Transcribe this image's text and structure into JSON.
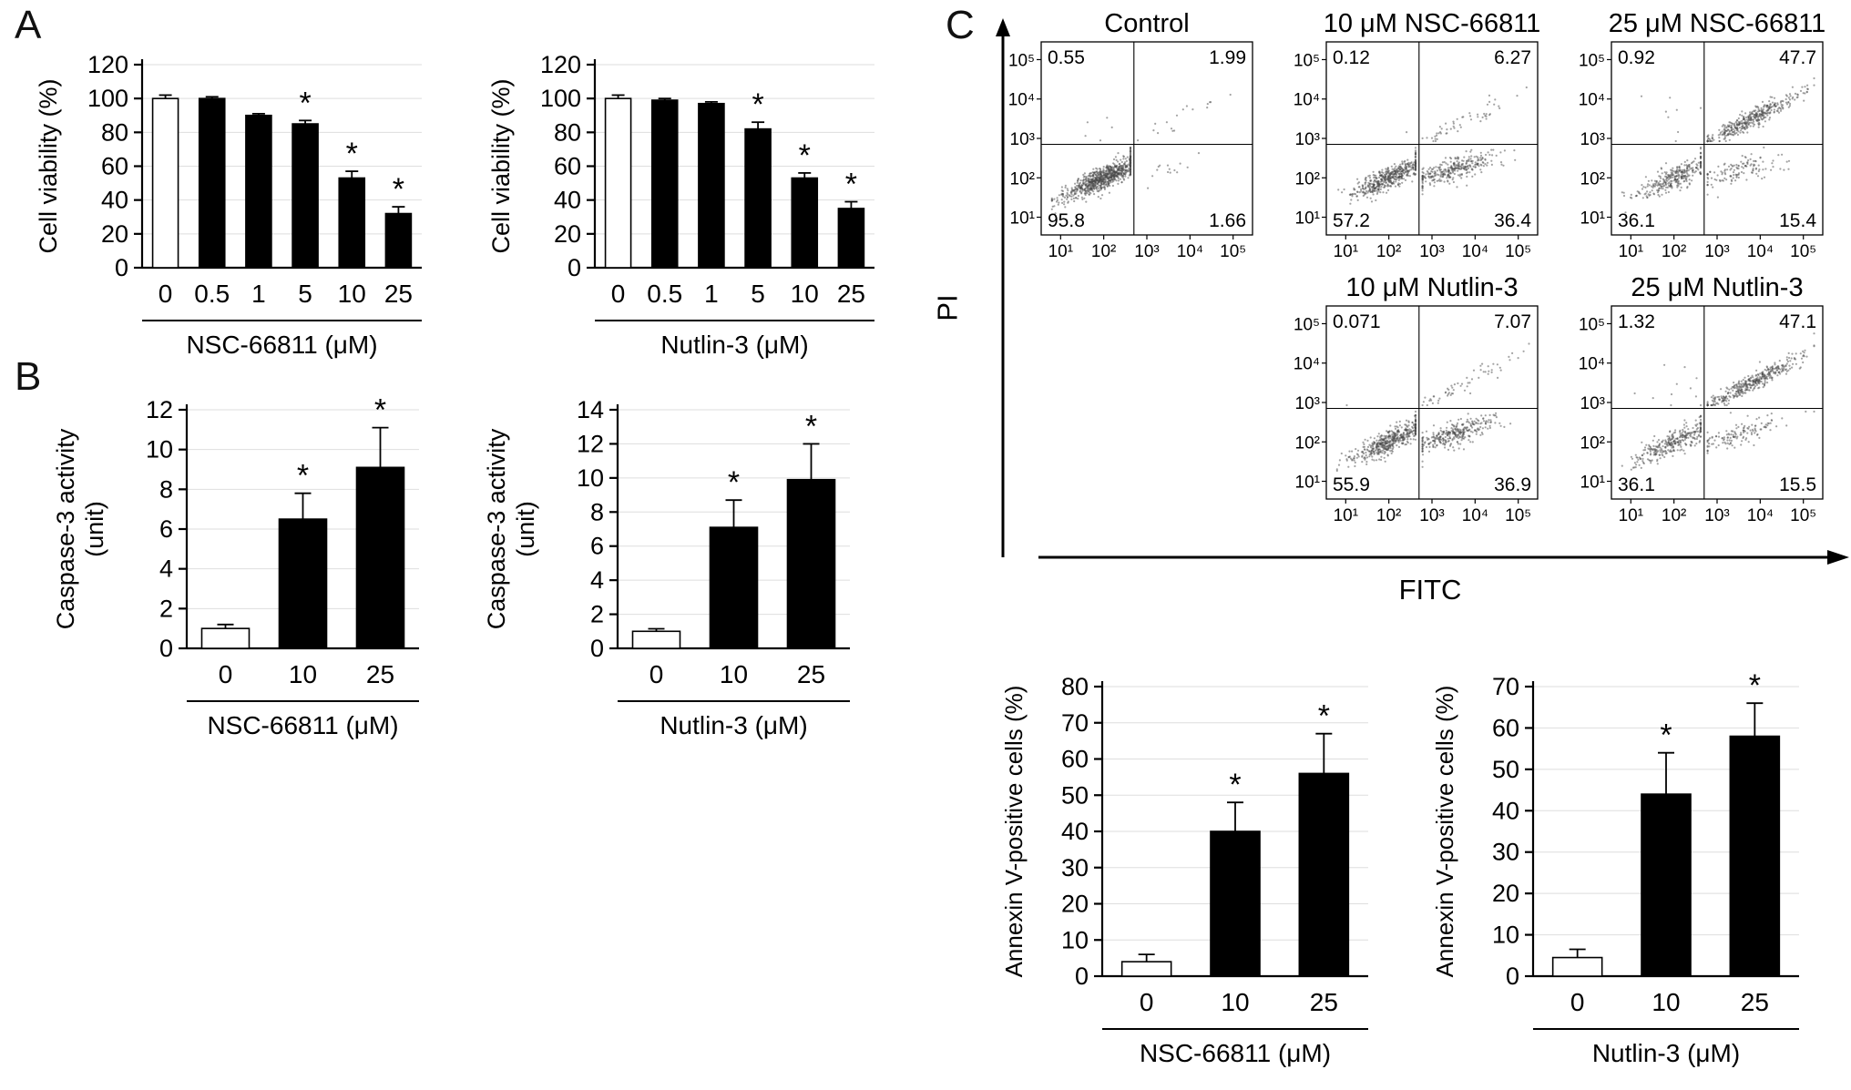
{
  "panel_labels": {
    "A": "A",
    "B": "B",
    "C": "C"
  },
  "flow_axes": {
    "y_label": "PI",
    "x_label": "FITC"
  },
  "chart_data": [
    {
      "id": "viability_nsc",
      "type": "bar",
      "panel": "A",
      "ylabel": "Cell viability (%)",
      "ylabel_lines": [
        "Cell viability (%)"
      ],
      "xlabel": "NSC-66811 (μM)",
      "categories": [
        "0",
        "0.5",
        "1",
        "5",
        "10",
        "25"
      ],
      "values": [
        100,
        100,
        90,
        85,
        53,
        32
      ],
      "errors": [
        2,
        1,
        1,
        2,
        4,
        4
      ],
      "significance": [
        "",
        "",
        "",
        "*",
        "*",
        "*"
      ],
      "bar_fills": [
        "#ffffff",
        "#000000",
        "#000000",
        "#000000",
        "#000000",
        "#000000"
      ],
      "ylim": [
        0,
        120
      ],
      "ytick_step": 20,
      "grid": true
    },
    {
      "id": "viability_nutlin",
      "type": "bar",
      "panel": "A",
      "ylabel": "Cell viability (%)",
      "ylabel_lines": [
        "Cell viability (%)"
      ],
      "xlabel": "Nutlin-3 (μM)",
      "categories": [
        "0",
        "0.5",
        "1",
        "5",
        "10",
        "25"
      ],
      "values": [
        100,
        99,
        97,
        82,
        53,
        35
      ],
      "errors": [
        2,
        1,
        1,
        4,
        3,
        4
      ],
      "significance": [
        "",
        "",
        "",
        "*",
        "*",
        "*"
      ],
      "bar_fills": [
        "#ffffff",
        "#000000",
        "#000000",
        "#000000",
        "#000000",
        "#000000"
      ],
      "ylim": [
        0,
        120
      ],
      "ytick_step": 20,
      "grid": true
    },
    {
      "id": "caspase_nsc",
      "type": "bar",
      "panel": "B",
      "ylabel": "Caspase-3 activity (unit)",
      "ylabel_lines": [
        "Caspase-3 activity",
        "(unit)"
      ],
      "xlabel": "NSC-66811 (μM)",
      "categories": [
        "0",
        "10",
        "25"
      ],
      "values": [
        1.0,
        6.5,
        9.1
      ],
      "errors": [
        0.2,
        1.3,
        2.0
      ],
      "significance": [
        "",
        "*",
        "*"
      ],
      "bar_fills": [
        "#ffffff",
        "#000000",
        "#000000"
      ],
      "ylim": [
        0,
        12
      ],
      "ytick_step": 2,
      "grid": true
    },
    {
      "id": "caspase_nutlin",
      "type": "bar",
      "panel": "B",
      "ylabel": "Caspase-3 activity (unit)",
      "ylabel_lines": [
        "Caspase-3 activity",
        "(unit)"
      ],
      "xlabel": "Nutlin-3 (μM)",
      "categories": [
        "0",
        "10",
        "25"
      ],
      "values": [
        1.0,
        7.1,
        9.9
      ],
      "errors": [
        0.15,
        1.6,
        2.1
      ],
      "significance": [
        "",
        "*",
        "*"
      ],
      "bar_fills": [
        "#ffffff",
        "#000000",
        "#000000"
      ],
      "ylim": [
        0,
        14
      ],
      "ytick_step": 2,
      "grid": true
    },
    {
      "id": "annexin_nsc",
      "type": "bar",
      "panel": "C",
      "ylabel": "Annexin V-positive cells (%)",
      "ylabel_lines": [
        "Annexin V-positive cells (%)"
      ],
      "xlabel": "NSC-66811 (μM)",
      "categories": [
        "0",
        "10",
        "25"
      ],
      "values": [
        4,
        40,
        56
      ],
      "errors": [
        2,
        8,
        11
      ],
      "significance": [
        "",
        "*",
        "*"
      ],
      "bar_fills": [
        "#ffffff",
        "#000000",
        "#000000"
      ],
      "ylim": [
        0,
        80
      ],
      "ytick_step": 10,
      "grid": true
    },
    {
      "id": "annexin_nutlin",
      "type": "bar",
      "panel": "C",
      "ylabel": "Annexin V-positive cells (%)",
      "ylabel_lines": [
        "Annexin V-positive cells (%)"
      ],
      "xlabel": "Nutlin-3 (μM)",
      "categories": [
        "0",
        "10",
        "25"
      ],
      "values": [
        4.5,
        44,
        58
      ],
      "errors": [
        2,
        10,
        8
      ],
      "significance": [
        "",
        "*",
        "*"
      ],
      "bar_fills": [
        "#ffffff",
        "#000000",
        "#000000"
      ],
      "ylim": [
        0,
        70
      ],
      "ytick_step": 10,
      "grid": true
    },
    {
      "id": "flow_control",
      "type": "scatter",
      "panel": "C",
      "title": "Control",
      "x_axis": "FITC",
      "y_axis": "PI",
      "x_ticks": [
        "10¹",
        "10²",
        "10³",
        "10⁴",
        "10⁵"
      ],
      "y_ticks": [
        "10¹",
        "10²",
        "10³",
        "10⁴",
        "10⁵"
      ],
      "quadrants": {
        "upper_left": "0.55",
        "upper_right": "1.99",
        "lower_left": "95.8",
        "lower_right": "1.66"
      }
    },
    {
      "id": "flow_nsc_10",
      "type": "scatter",
      "panel": "C",
      "title": "10 μM NSC-66811",
      "x_axis": "FITC",
      "y_axis": "PI",
      "x_ticks": [
        "10¹",
        "10²",
        "10³",
        "10⁴",
        "10⁵"
      ],
      "y_ticks": [
        "10¹",
        "10²",
        "10³",
        "10⁴",
        "10⁵"
      ],
      "quadrants": {
        "upper_left": "0.12",
        "upper_right": "6.27",
        "lower_left": "57.2",
        "lower_right": "36.4"
      }
    },
    {
      "id": "flow_nsc_25",
      "type": "scatter",
      "panel": "C",
      "title": "25 μM NSC-66811",
      "x_axis": "FITC",
      "y_axis": "PI",
      "x_ticks": [
        "10¹",
        "10²",
        "10³",
        "10⁴",
        "10⁵"
      ],
      "y_ticks": [
        "10¹",
        "10²",
        "10³",
        "10⁴",
        "10⁵"
      ],
      "quadrants": {
        "upper_left": "0.92",
        "upper_right": "47.7",
        "lower_left": "36.1",
        "lower_right": "15.4"
      }
    },
    {
      "id": "flow_nutlin_10",
      "type": "scatter",
      "panel": "C",
      "title": "10 μM Nutlin-3",
      "x_axis": "FITC",
      "y_axis": "PI",
      "x_ticks": [
        "10¹",
        "10²",
        "10³",
        "10⁴",
        "10⁵"
      ],
      "y_ticks": [
        "10¹",
        "10²",
        "10³",
        "10⁴",
        "10⁵"
      ],
      "quadrants": {
        "upper_left": "0.071",
        "upper_right": "7.07",
        "lower_left": "55.9",
        "lower_right": "36.9"
      }
    },
    {
      "id": "flow_nutlin_25",
      "type": "scatter",
      "panel": "C",
      "title": "25 μM Nutlin-3",
      "x_axis": "FITC",
      "y_axis": "PI",
      "x_ticks": [
        "10¹",
        "10²",
        "10³",
        "10⁴",
        "10⁵"
      ],
      "y_ticks": [
        "10¹",
        "10²",
        "10³",
        "10⁴",
        "10⁵"
      ],
      "quadrants": {
        "upper_left": "1.32",
        "upper_right": "47.1",
        "lower_left": "36.1",
        "lower_right": "15.5"
      }
    }
  ]
}
